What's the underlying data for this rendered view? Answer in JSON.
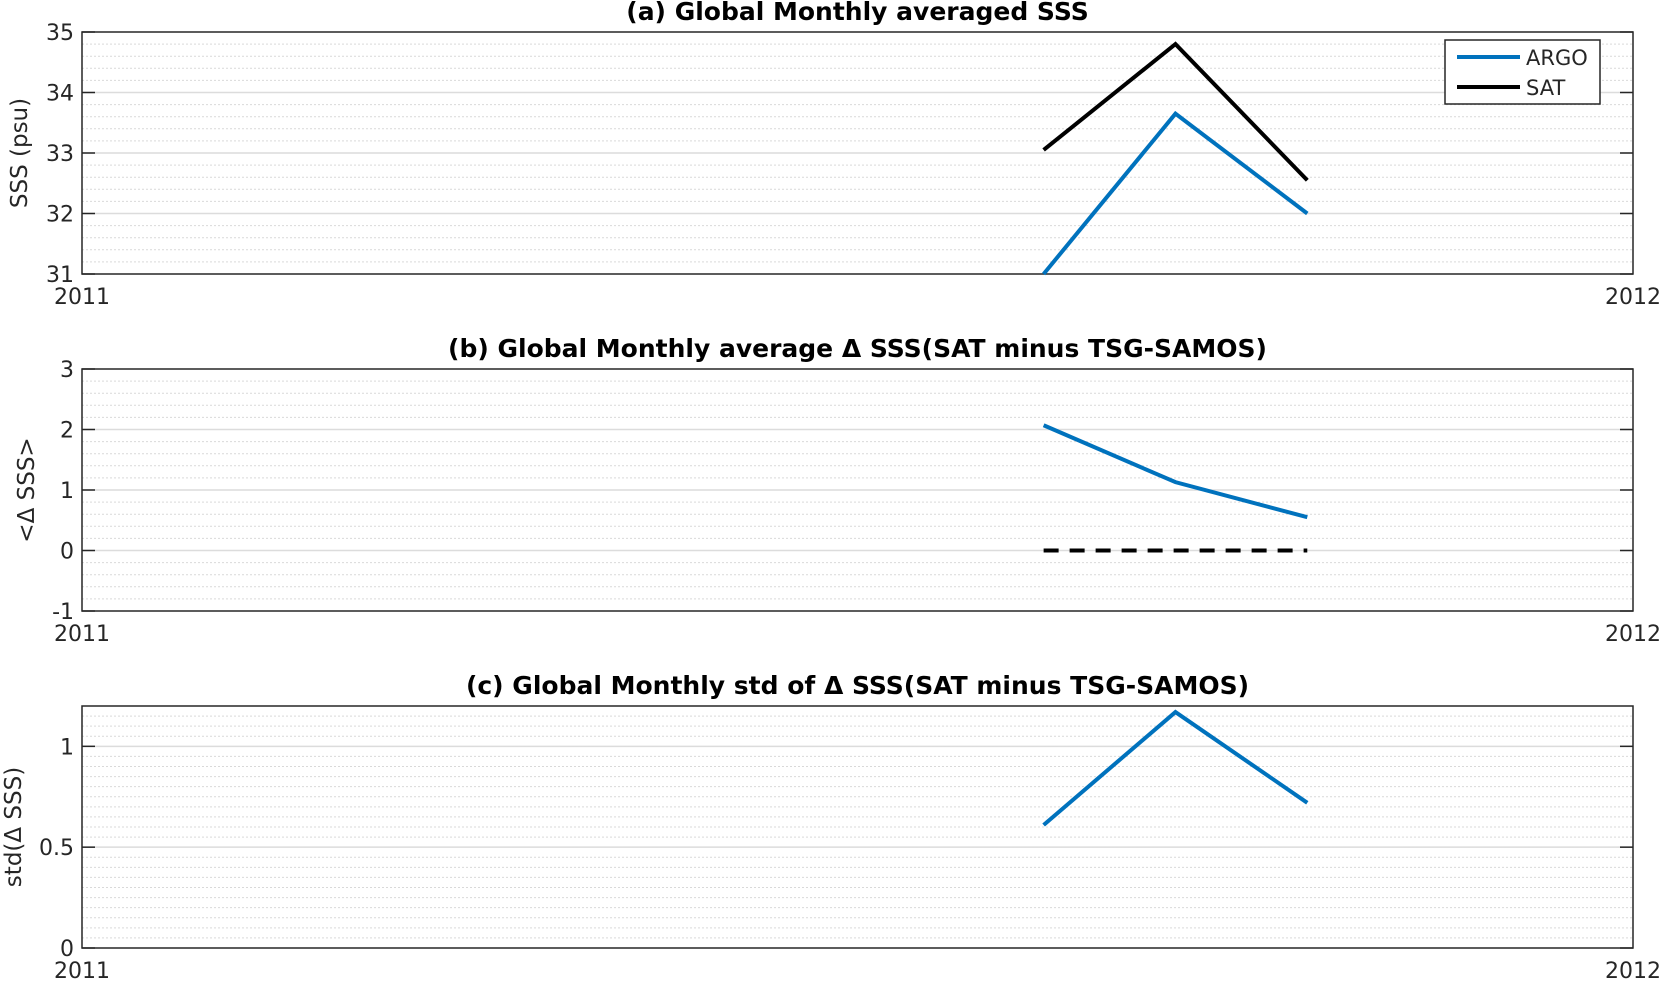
{
  "chart_data": [
    {
      "type": "line",
      "title": "(a) Global Monthly averaged SSS",
      "xlabel": "",
      "ylabel": "SSS (psu)",
      "xlim": [
        2011,
        2012
      ],
      "ylim": [
        31,
        35
      ],
      "yticks": [
        31,
        32,
        33,
        34,
        35
      ],
      "xtick_labels": [
        "2011",
        "2012"
      ],
      "grid": true,
      "legend": "top-right",
      "x": [
        2011.62,
        2011.705,
        2011.79
      ],
      "series": [
        {
          "name": "ARGO",
          "color": "#0072BD",
          "style": "solid",
          "values": [
            31.0,
            33.65,
            32.0
          ]
        },
        {
          "name": "SAT",
          "color": "#000000",
          "style": "solid",
          "values": [
            33.05,
            34.8,
            32.55
          ]
        }
      ]
    },
    {
      "type": "line",
      "title": "(b) Global Monthly average Δ SSS(SAT minus TSG-SAMOS)",
      "xlabel": "",
      "ylabel": "<Δ SSS>",
      "xlim": [
        2011,
        2012
      ],
      "ylim": [
        -1,
        3
      ],
      "yticks": [
        -1,
        0,
        1,
        2,
        3
      ],
      "xtick_labels": [
        "2011",
        "2012"
      ],
      "grid": true,
      "x": [
        2011.62,
        2011.705,
        2011.79
      ],
      "series": [
        {
          "color": "#0072BD",
          "style": "solid",
          "values": [
            2.07,
            1.13,
            0.55
          ]
        },
        {
          "color": "#000000",
          "style": "dashed",
          "values": [
            0,
            0,
            0
          ]
        }
      ]
    },
    {
      "type": "line",
      "title": "(c) Global Monthly std of Δ SSS(SAT minus TSG-SAMOS)",
      "xlabel": "",
      "ylabel": "std(Δ SSS)",
      "xlim": [
        2011,
        2012
      ],
      "ylim": [
        0,
        1.2
      ],
      "yticks": [
        0,
        0.5,
        1
      ],
      "xtick_labels": [
        "2011",
        "2012"
      ],
      "grid": true,
      "x": [
        2011.62,
        2011.705,
        2011.79
      ],
      "series": [
        {
          "color": "#0072BD",
          "style": "solid",
          "values": [
            0.61,
            1.17,
            0.72
          ]
        }
      ]
    }
  ]
}
